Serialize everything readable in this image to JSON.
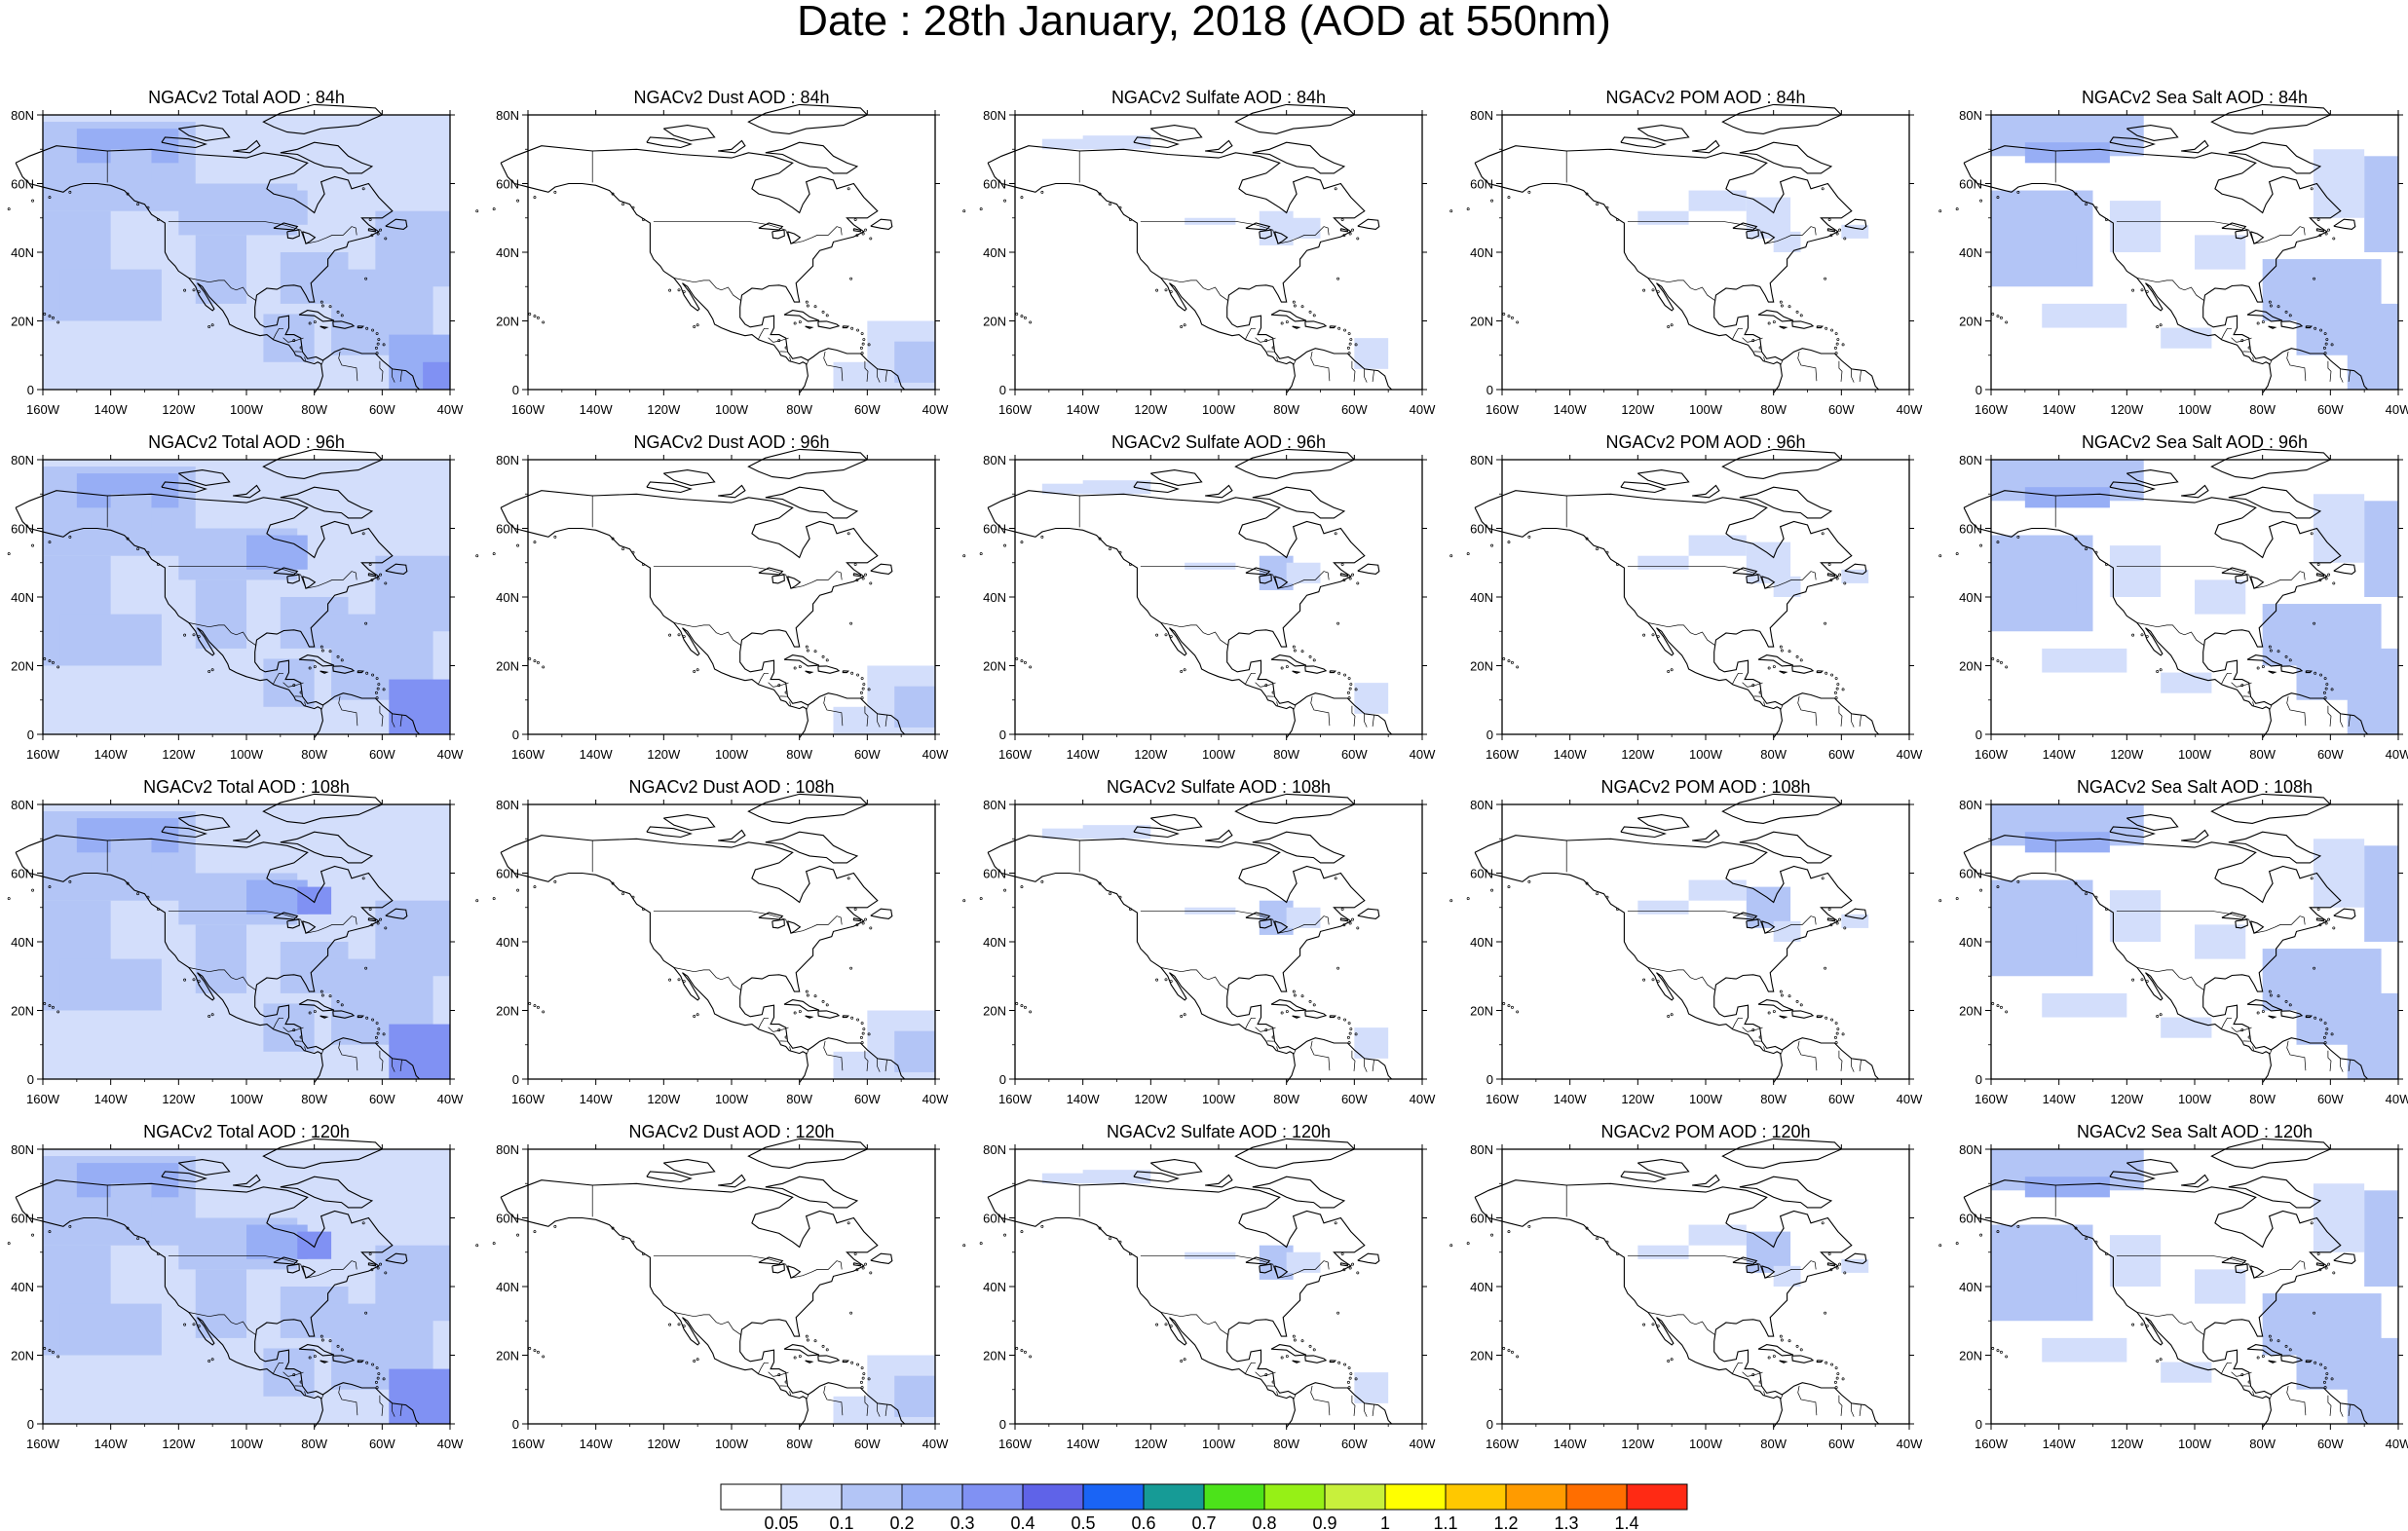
{
  "title": "Date : 28th January, 2018 (AOD at 550nm)",
  "map": {
    "projection": "cylindrical-equidistant",
    "lon_range": [
      -160,
      -40
    ],
    "lat_range": [
      0,
      80
    ],
    "lon_ticks": [
      "160W",
      "140W",
      "120W",
      "100W",
      "80W",
      "60W",
      "40W"
    ],
    "lat_ticks": [
      "0",
      "20N",
      "40N",
      "60N",
      "80N"
    ],
    "coastline_color": "#000000"
  },
  "panels": [
    [
      {
        "title": "NGACv2 Total AOD : 84h",
        "species": "total",
        "hour": 84
      },
      {
        "title": "NGACv2 Dust AOD : 84h",
        "species": "dust",
        "hour": 84
      },
      {
        "title": "NGACv2 Sulfate AOD : 84h",
        "species": "sulfate",
        "hour": 84
      },
      {
        "title": "NGACv2 POM AOD : 84h",
        "species": "pom",
        "hour": 84
      },
      {
        "title": "NGACv2 Sea Salt AOD : 84h",
        "species": "seasalt",
        "hour": 84
      }
    ],
    [
      {
        "title": "NGACv2 Total AOD : 96h",
        "species": "total",
        "hour": 96
      },
      {
        "title": "NGACv2 Dust AOD : 96h",
        "species": "dust",
        "hour": 96
      },
      {
        "title": "NGACv2 Sulfate AOD : 96h",
        "species": "sulfate",
        "hour": 96
      },
      {
        "title": "NGACv2 POM AOD : 96h",
        "species": "pom",
        "hour": 96
      },
      {
        "title": "NGACv2 Sea Salt AOD : 96h",
        "species": "seasalt",
        "hour": 96
      }
    ],
    [
      {
        "title": "NGACv2 Total AOD : 108h",
        "species": "total",
        "hour": 108
      },
      {
        "title": "NGACv2 Dust AOD : 108h",
        "species": "dust",
        "hour": 108
      },
      {
        "title": "NGACv2 Sulfate AOD : 108h",
        "species": "sulfate",
        "hour": 108
      },
      {
        "title": "NGACv2 POM AOD : 108h",
        "species": "pom",
        "hour": 108
      },
      {
        "title": "NGACv2 Sea Salt AOD : 108h",
        "species": "seasalt",
        "hour": 108
      }
    ],
    [
      {
        "title": "NGACv2 Total AOD : 120h",
        "species": "total",
        "hour": 120
      },
      {
        "title": "NGACv2 Dust AOD : 120h",
        "species": "dust",
        "hour": 120
      },
      {
        "title": "NGACv2 Sulfate AOD : 120h",
        "species": "sulfate",
        "hour": 120
      },
      {
        "title": "NGACv2 POM AOD : 120h",
        "species": "pom",
        "hour": 120
      },
      {
        "title": "NGACv2 Sea Salt  AOD : 120h",
        "species": "seasalt",
        "hour": 120
      }
    ]
  ],
  "colorbar": {
    "labels": [
      "0.05",
      "0.1",
      "0.2",
      "0.3",
      "0.4",
      "0.5",
      "0.6",
      "0.7",
      "0.8",
      "0.9",
      "1",
      "1.1",
      "1.2",
      "1.3",
      "1.4"
    ],
    "colors": [
      "#ffffff",
      "#d3defb",
      "#b3c5f6",
      "#97aef5",
      "#8091f3",
      "#5f63e8",
      "#1a64f5",
      "#169b96",
      "#4ce31a",
      "#96f016",
      "#c8f03c",
      "#ffff00",
      "#ffc800",
      "#ff9b00",
      "#ff6e00",
      "#ff2a14"
    ]
  },
  "chart_data": [
    {
      "type": "heatmap",
      "title": "NGACv2 Total AOD : 84h",
      "field": "aod_550nm_total",
      "forecast_hour": 84,
      "xlabel": "",
      "ylabel": "",
      "xlim": [
        -160,
        -40
      ],
      "ylim": [
        0,
        80
      ],
      "color_levels": [
        0.05,
        0.1,
        0.2,
        0.3,
        0.4,
        0.5,
        0.6,
        0.7,
        0.8,
        0.9,
        1,
        1.1,
        1.2,
        1.3,
        1.4
      ],
      "data": [
        {
          "lon": -150,
          "lat": 70,
          "aod": 0.2
        },
        {
          "lon": -150,
          "lat": 50,
          "aod": 0.2
        },
        {
          "lon": -100,
          "lat": 55,
          "aod": 0.15
        },
        {
          "lon": -115,
          "lat": 35,
          "aod": 0.1
        },
        {
          "lon": -50,
          "lat": 12,
          "aod": 0.3
        },
        {
          "lon": -95,
          "lat": 25,
          "aod": 0.1
        }
      ]
    },
    {
      "type": "heatmap",
      "title": "NGACv2 Dust AOD : 84h",
      "field": "aod_550nm_dust",
      "forecast_hour": 84,
      "xlabel": "",
      "ylabel": "",
      "xlim": [
        -160,
        -40
      ],
      "ylim": [
        0,
        80
      ],
      "color_levels": [
        0.05,
        0.1,
        0.2,
        0.3,
        0.4,
        0.5,
        0.6,
        0.7,
        0.8,
        0.9,
        1,
        1.1,
        1.2,
        1.3,
        1.4
      ],
      "data": [
        {
          "lon": -50,
          "lat": 10,
          "aod": 0.1
        },
        {
          "lon": -60,
          "lat": 18,
          "aod": 0.05
        }
      ]
    },
    {
      "type": "heatmap",
      "title": "NGACv2 Sulfate AOD : 84h",
      "field": "aod_550nm_sulfate",
      "forecast_hour": 84,
      "xlabel": "",
      "ylabel": "",
      "xlim": [
        -160,
        -40
      ],
      "ylim": [
        0,
        80
      ],
      "color_levels": [
        0.05,
        0.1,
        0.2,
        0.3,
        0.4,
        0.5,
        0.6,
        0.7,
        0.8,
        0.9,
        1,
        1.1,
        1.2,
        1.3,
        1.4
      ],
      "data": [
        {
          "lon": -150,
          "lat": 70,
          "aod": 0.05
        },
        {
          "lon": -100,
          "lat": 49,
          "aod": 0.05
        },
        {
          "lon": -55,
          "lat": 12,
          "aod": 0.05
        }
      ]
    },
    {
      "type": "heatmap",
      "title": "NGACv2 POM AOD : 84h",
      "field": "aod_550nm_pom",
      "forecast_hour": 84,
      "xlabel": "",
      "ylabel": "",
      "xlim": [
        -160,
        -40
      ],
      "ylim": [
        0,
        80
      ],
      "color_levels": [
        0.05,
        0.1,
        0.2,
        0.3,
        0.4,
        0.5,
        0.6,
        0.7,
        0.8,
        0.9,
        1,
        1.1,
        1.2,
        1.3,
        1.4
      ],
      "data": [
        {
          "lon": -95,
          "lat": 55,
          "aod": 0.1
        },
        {
          "lon": -80,
          "lat": 45,
          "aod": 0.05
        }
      ]
    },
    {
      "type": "heatmap",
      "title": "NGACv2 Sea Salt AOD : 84h",
      "field": "aod_550nm_seasalt",
      "forecast_hour": 84,
      "xlabel": "",
      "ylabel": "",
      "xlim": [
        -160,
        -40
      ],
      "ylim": [
        0,
        80
      ],
      "color_levels": [
        0.05,
        0.1,
        0.2,
        0.3,
        0.4,
        0.5,
        0.6,
        0.7,
        0.8,
        0.9,
        1,
        1.1,
        1.2,
        1.3,
        1.4
      ],
      "data": [
        {
          "lon": -145,
          "lat": 70,
          "aod": 0.15
        },
        {
          "lon": -150,
          "lat": 45,
          "aod": 0.15
        },
        {
          "lon": -60,
          "lat": 25,
          "aod": 0.1
        },
        {
          "lon": -45,
          "lat": 50,
          "aod": 0.1
        }
      ]
    },
    {
      "type": "heatmap",
      "title": "NGACv2 Total AOD : 96h",
      "field": "aod_550nm_total",
      "forecast_hour": 96,
      "xlabel": "",
      "ylabel": "",
      "xlim": [
        -160,
        -40
      ],
      "ylim": [
        0,
        80
      ],
      "color_levels": [
        0.05,
        0.1,
        0.2,
        0.3,
        0.4,
        0.5,
        0.6,
        0.7,
        0.8,
        0.9,
        1,
        1.1,
        1.2,
        1.3,
        1.4
      ],
      "data": [
        {
          "lon": -145,
          "lat": 72,
          "aod": 0.2
        },
        {
          "lon": -145,
          "lat": 50,
          "aod": 0.2
        },
        {
          "lon": -95,
          "lat": 52,
          "aod": 0.2
        },
        {
          "lon": -50,
          "lat": 10,
          "aod": 0.3
        }
      ]
    },
    {
      "type": "heatmap",
      "title": "NGACv2 Dust AOD : 96h",
      "field": "aod_550nm_dust",
      "forecast_hour": 96,
      "xlabel": "",
      "ylabel": "",
      "xlim": [
        -160,
        -40
      ],
      "ylim": [
        0,
        80
      ],
      "color_levels": [
        0.05,
        0.1,
        0.2,
        0.3,
        0.4,
        0.5,
        0.6,
        0.7,
        0.8,
        0.9,
        1,
        1.1,
        1.2,
        1.3,
        1.4
      ],
      "data": [
        {
          "lon": -50,
          "lat": 10,
          "aod": 0.1
        },
        {
          "lon": -58,
          "lat": 18,
          "aod": 0.05
        }
      ]
    },
    {
      "type": "heatmap",
      "title": "NGACv2 Sulfate AOD : 96h",
      "field": "aod_550nm_sulfate",
      "forecast_hour": 96,
      "xlabel": "",
      "ylabel": "",
      "xlim": [
        -160,
        -40
      ],
      "ylim": [
        0,
        80
      ],
      "color_levels": [
        0.05,
        0.1,
        0.2,
        0.3,
        0.4,
        0.5,
        0.6,
        0.7,
        0.8,
        0.9,
        1,
        1.1,
        1.2,
        1.3,
        1.4
      ],
      "data": [
        {
          "lon": -150,
          "lat": 70,
          "aod": 0.05
        },
        {
          "lon": -85,
          "lat": 45,
          "aod": 0.1
        }
      ]
    },
    {
      "type": "heatmap",
      "title": "NGACv2 POM AOD : 96h",
      "field": "aod_550nm_pom",
      "forecast_hour": 96,
      "xlabel": "",
      "ylabel": "",
      "xlim": [
        -160,
        -40
      ],
      "ylim": [
        0,
        80
      ],
      "color_levels": [
        0.05,
        0.1,
        0.2,
        0.3,
        0.4,
        0.5,
        0.6,
        0.7,
        0.8,
        0.9,
        1,
        1.1,
        1.2,
        1.3,
        1.4
      ],
      "data": [
        {
          "lon": -90,
          "lat": 55,
          "aod": 0.1
        },
        {
          "lon": -80,
          "lat": 45,
          "aod": 0.1
        }
      ]
    },
    {
      "type": "heatmap",
      "title": "NGACv2 Sea Salt AOD : 96h",
      "field": "aod_550nm_seasalt",
      "forecast_hour": 96,
      "xlabel": "",
      "ylabel": "",
      "xlim": [
        -160,
        -40
      ],
      "ylim": [
        0,
        80
      ],
      "color_levels": [
        0.05,
        0.1,
        0.2,
        0.3,
        0.4,
        0.5,
        0.6,
        0.7,
        0.8,
        0.9,
        1,
        1.1,
        1.2,
        1.3,
        1.4
      ],
      "data": [
        {
          "lon": -145,
          "lat": 72,
          "aod": 0.2
        },
        {
          "lon": -145,
          "lat": 45,
          "aod": 0.15
        },
        {
          "lon": -60,
          "lat": 15,
          "aod": 0.1
        }
      ]
    },
    {
      "type": "heatmap",
      "title": "NGACv2 Total AOD : 108h",
      "field": "aod_550nm_total",
      "forecast_hour": 108,
      "xlabel": "",
      "ylabel": "",
      "xlim": [
        -160,
        -40
      ],
      "ylim": [
        0,
        80
      ],
      "color_levels": [
        0.05,
        0.1,
        0.2,
        0.3,
        0.4,
        0.5,
        0.6,
        0.7,
        0.8,
        0.9,
        1,
        1.1,
        1.2,
        1.3,
        1.4
      ],
      "data": [
        {
          "lon": -145,
          "lat": 65,
          "aod": 0.2
        },
        {
          "lon": -80,
          "lat": 50,
          "aod": 0.3
        },
        {
          "lon": -50,
          "lat": 10,
          "aod": 0.3
        }
      ]
    },
    {
      "type": "heatmap",
      "title": "NGACv2 Dust AOD : 108h",
      "field": "aod_550nm_dust",
      "forecast_hour": 108,
      "xlabel": "",
      "ylabel": "",
      "xlim": [
        -160,
        -40
      ],
      "ylim": [
        0,
        80
      ],
      "color_levels": [
        0.05,
        0.1,
        0.2,
        0.3,
        0.4,
        0.5,
        0.6,
        0.7,
        0.8,
        0.9,
        1,
        1.1,
        1.2,
        1.3,
        1.4
      ],
      "data": [
        {
          "lon": -50,
          "lat": 10,
          "aod": 0.1
        },
        {
          "lon": -55,
          "lat": 20,
          "aod": 0.05
        }
      ]
    },
    {
      "type": "heatmap",
      "title": "NGACv2 Sulfate AOD : 108h",
      "field": "aod_550nm_sulfate",
      "forecast_hour": 108,
      "xlabel": "",
      "ylabel": "",
      "xlim": [
        -160,
        -40
      ],
      "ylim": [
        0,
        80
      ],
      "color_levels": [
        0.05,
        0.1,
        0.2,
        0.3,
        0.4,
        0.5,
        0.6,
        0.7,
        0.8,
        0.9,
        1,
        1.1,
        1.2,
        1.3,
        1.4
      ],
      "data": [
        {
          "lon": -150,
          "lat": 72,
          "aod": 0.05
        },
        {
          "lon": -82,
          "lat": 48,
          "aod": 0.15
        }
      ]
    },
    {
      "type": "heatmap",
      "title": "NGACv2 POM AOD : 108h",
      "field": "aod_550nm_pom",
      "forecast_hour": 108,
      "xlabel": "",
      "ylabel": "",
      "xlim": [
        -160,
        -40
      ],
      "ylim": [
        0,
        80
      ],
      "color_levels": [
        0.05,
        0.1,
        0.2,
        0.3,
        0.4,
        0.5,
        0.6,
        0.7,
        0.8,
        0.9,
        1,
        1.1,
        1.2,
        1.3,
        1.4
      ],
      "data": [
        {
          "lon": -100,
          "lat": 55,
          "aod": 0.05
        },
        {
          "lon": -78,
          "lat": 55,
          "aod": 0.1
        }
      ]
    },
    {
      "type": "heatmap",
      "title": "NGACv2 Sea Salt AOD : 108h",
      "field": "aod_550nm_seasalt",
      "forecast_hour": 108,
      "xlabel": "",
      "ylabel": "",
      "xlim": [
        -160,
        -40
      ],
      "ylim": [
        0,
        80
      ],
      "color_levels": [
        0.05,
        0.1,
        0.2,
        0.3,
        0.4,
        0.5,
        0.6,
        0.7,
        0.8,
        0.9,
        1,
        1.1,
        1.2,
        1.3,
        1.4
      ],
      "data": [
        {
          "lon": -145,
          "lat": 60,
          "aod": 0.15
        },
        {
          "lon": -55,
          "lat": 20,
          "aod": 0.1
        }
      ]
    },
    {
      "type": "heatmap",
      "title": "NGACv2 Total AOD : 120h",
      "field": "aod_550nm_total",
      "forecast_hour": 120,
      "xlabel": "",
      "ylabel": "",
      "xlim": [
        -160,
        -40
      ],
      "ylim": [
        0,
        80
      ],
      "color_levels": [
        0.05,
        0.1,
        0.2,
        0.3,
        0.4,
        0.5,
        0.6,
        0.7,
        0.8,
        0.9,
        1,
        1.1,
        1.2,
        1.3,
        1.4
      ],
      "data": [
        {
          "lon": -145,
          "lat": 72,
          "aod": 0.2
        },
        {
          "lon": -145,
          "lat": 45,
          "aod": 0.2
        },
        {
          "lon": -95,
          "lat": 50,
          "aod": 0.2
        },
        {
          "lon": -50,
          "lat": 5,
          "aod": 0.4
        }
      ]
    },
    {
      "type": "heatmap",
      "title": "NGACv2 Dust AOD : 120h",
      "field": "aod_550nm_dust",
      "forecast_hour": 120,
      "xlabel": "",
      "ylabel": "",
      "xlim": [
        -160,
        -40
      ],
      "ylim": [
        0,
        80
      ],
      "color_levels": [
        0.05,
        0.1,
        0.2,
        0.3,
        0.4,
        0.5,
        0.6,
        0.7,
        0.8,
        0.9,
        1,
        1.1,
        1.2,
        1.3,
        1.4
      ],
      "data": [
        {
          "lon": -50,
          "lat": 10,
          "aod": 0.1
        },
        {
          "lon": -48,
          "lat": 22,
          "aod": 0.05
        }
      ]
    },
    {
      "type": "heatmap",
      "title": "NGACv2 Sulfate AOD : 120h",
      "field": "aod_550nm_sulfate",
      "forecast_hour": 120,
      "xlabel": "",
      "ylabel": "",
      "xlim": [
        -160,
        -40
      ],
      "ylim": [
        0,
        80
      ],
      "color_levels": [
        0.05,
        0.1,
        0.2,
        0.3,
        0.4,
        0.5,
        0.6,
        0.7,
        0.8,
        0.9,
        1,
        1.1,
        1.2,
        1.3,
        1.4
      ],
      "data": [
        {
          "lon": -140,
          "lat": 72,
          "aod": 0.05
        },
        {
          "lon": -80,
          "lat": 48,
          "aod": 0.1
        }
      ]
    },
    {
      "type": "heatmap",
      "title": "NGACv2 POM AOD : 120h",
      "field": "aod_550nm_pom",
      "forecast_hour": 120,
      "xlabel": "",
      "ylabel": "",
      "xlim": [
        -160,
        -40
      ],
      "ylim": [
        0,
        80
      ],
      "color_levels": [
        0.05,
        0.1,
        0.2,
        0.3,
        0.4,
        0.5,
        0.6,
        0.7,
        0.8,
        0.9,
        1,
        1.1,
        1.2,
        1.3,
        1.4
      ],
      "data": [
        {
          "lon": -100,
          "lat": 52,
          "aod": 0.05
        },
        {
          "lon": -75,
          "lat": 45,
          "aod": 0.1
        }
      ]
    },
    {
      "type": "heatmap",
      "title": "NGACv2 Sea Salt  AOD : 120h",
      "field": "aod_550nm_seasalt",
      "forecast_hour": 120,
      "xlabel": "",
      "ylabel": "",
      "xlim": [
        -160,
        -40
      ],
      "ylim": [
        0,
        80
      ],
      "color_levels": [
        0.05,
        0.1,
        0.2,
        0.3,
        0.4,
        0.5,
        0.6,
        0.7,
        0.8,
        0.9,
        1,
        1.1,
        1.2,
        1.3,
        1.4
      ],
      "data": [
        {
          "lon": -145,
          "lat": 75,
          "aod": 0.2
        },
        {
          "lon": -150,
          "lat": 40,
          "aod": 0.1
        },
        {
          "lon": -50,
          "lat": 5,
          "aod": 0.15
        }
      ]
    }
  ]
}
